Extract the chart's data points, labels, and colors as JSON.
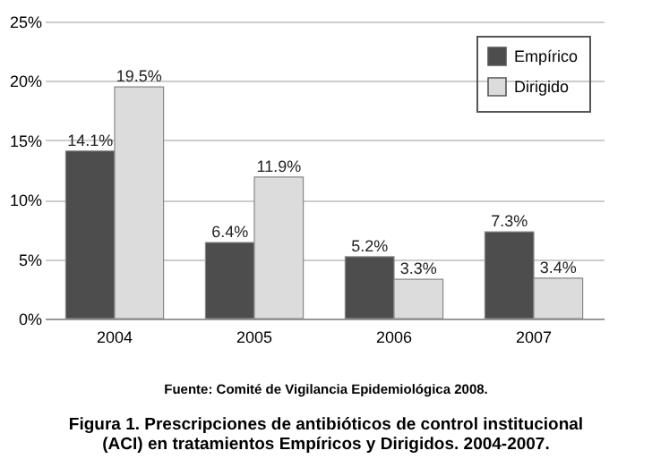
{
  "chart_data": {
    "type": "bar",
    "categories": [
      "2004",
      "2005",
      "2006",
      "2007"
    ],
    "series": [
      {
        "name": "Empírico",
        "color": "#4d4d4d",
        "values": [
          14.1,
          6.4,
          5.2,
          7.3
        ],
        "value_labels": [
          "14.1%",
          "6.4%",
          "5.2%",
          "7.3%"
        ]
      },
      {
        "name": "Dirigido",
        "color": "#dcdcdc",
        "values": [
          19.5,
          11.9,
          3.3,
          3.4
        ],
        "value_labels": [
          "19.5%",
          "11.9%",
          "3.3%",
          "3.4%"
        ]
      }
    ],
    "ylim": [
      0,
      25
    ],
    "yticks": [
      {
        "value": 0,
        "label": "0%"
      },
      {
        "value": 5,
        "label": "5%"
      },
      {
        "value": 10,
        "label": "10%"
      },
      {
        "value": 15,
        "label": "15%"
      },
      {
        "value": 20,
        "label": "20%"
      },
      {
        "value": 25,
        "label": "25%"
      }
    ],
    "grid": "y",
    "legend": "top right",
    "annotations": [
      "Fuente: Comité de Vigilancia Epidemiológica 2008.",
      "Figura 1. Prescripciones de antibióticos de control institucional (ACI) en tratamientos Empíricos y Dirigidos. 2004-2007."
    ]
  }
}
